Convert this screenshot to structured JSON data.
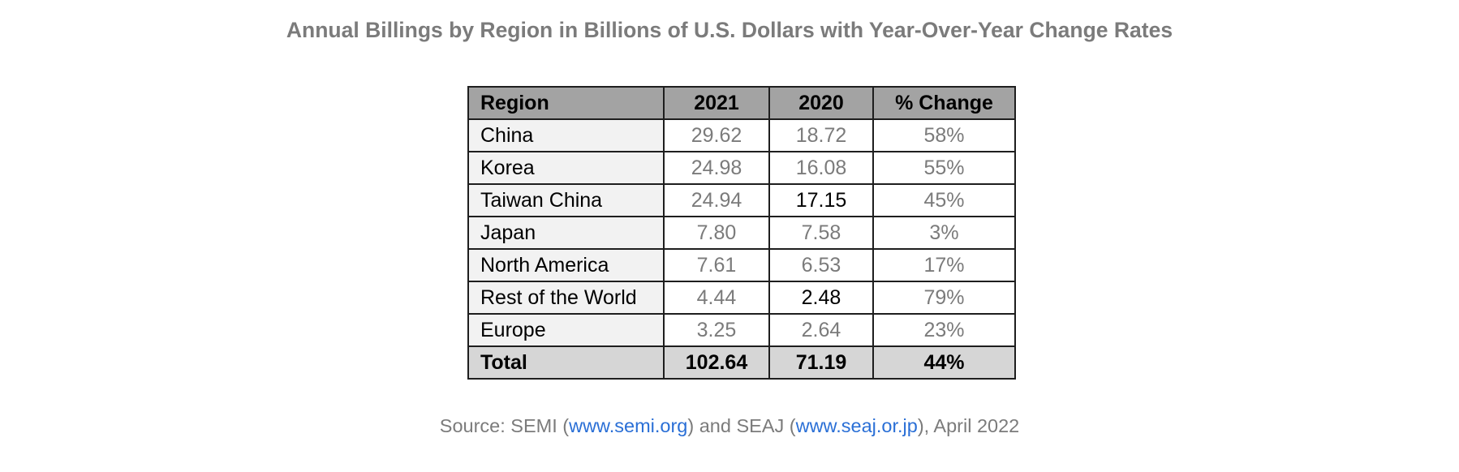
{
  "title": "Annual Billings by Region in Billions of U.S. Dollars with Year-Over-Year Change Rates",
  "colors": {
    "title_gray": "#7b7b7b",
    "header_bg": "#a3a3a3",
    "region_bg": "#f2f2f2",
    "total_bg": "#d6d6d6",
    "link_blue": "#2a6fd6"
  },
  "table": {
    "headers": [
      "Region",
      "2021",
      "2020",
      "% Change"
    ],
    "rows": [
      {
        "region": "China",
        "y2021": "29.62",
        "y2020": "18.72",
        "change": "58%"
      },
      {
        "region": "Korea",
        "y2021": "24.98",
        "y2020": "16.08",
        "change": "55%"
      },
      {
        "region": "Taiwan China",
        "y2021": "24.94",
        "y2020": "17.15",
        "change": "45%"
      },
      {
        "region": "Japan",
        "y2021": "7.80",
        "y2020": "7.58",
        "change": "3%"
      },
      {
        "region": "North America",
        "y2021": "7.61",
        "y2020": "6.53",
        "change": "17%"
      },
      {
        "region": "Rest of the World",
        "y2021": "4.44",
        "y2020": "2.48",
        "change": "79%"
      },
      {
        "region": "Europe",
        "y2021": "3.25",
        "y2020": "2.64",
        "change": "23%"
      }
    ],
    "total": {
      "region": "Total",
      "y2021": "102.64",
      "y2020": "71.19",
      "change": "44%"
    }
  },
  "source": {
    "prefix": "Source: SEMI (",
    "link1": "www.semi.org",
    "middle": ") and SEAJ (",
    "link2": "www.seaj.or.jp",
    "suffix": "), April 2022"
  }
}
